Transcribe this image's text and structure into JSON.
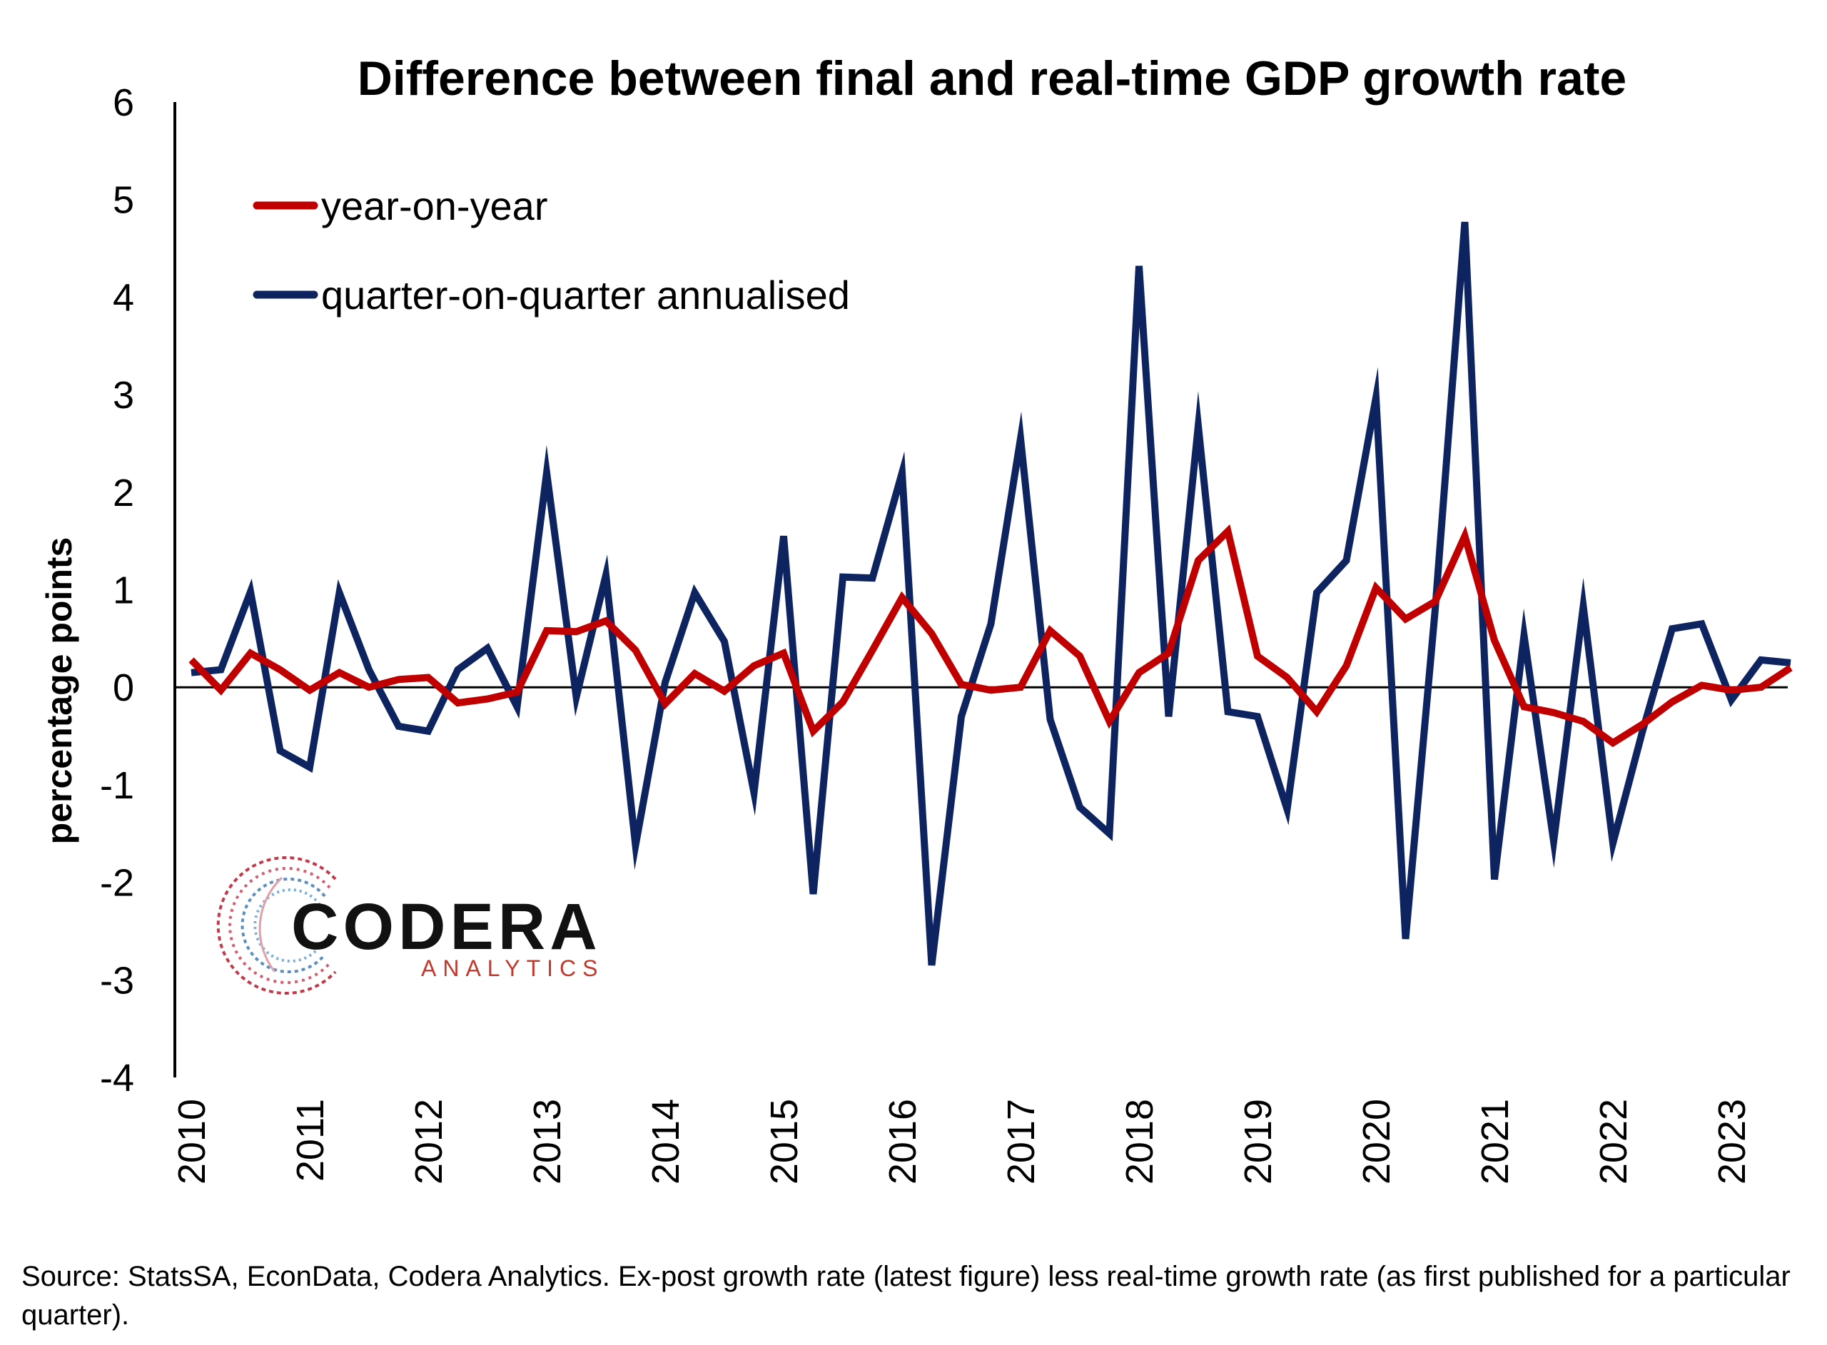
{
  "chart_data": {
    "type": "line",
    "title": "Difference between final and real-time GDP growth rate",
    "ylabel": "percentage points",
    "xlabel": "",
    "ylim": [
      -4,
      6
    ],
    "yticks": [
      6,
      5,
      4,
      3,
      2,
      1,
      0,
      -1,
      -2,
      -3,
      -4
    ],
    "ytick_labels": [
      "6",
      "5",
      "4",
      "3",
      "2",
      "1",
      "0",
      "-1",
      "-2",
      "-3",
      "-4"
    ],
    "x_start": 2010,
    "x_tick_labels": [
      "2010",
      "2011",
      "2012",
      "2013",
      "2014",
      "2015",
      "2016",
      "2017",
      "2018",
      "2019",
      "2020",
      "2021",
      "2022",
      "2023"
    ],
    "legend_position": "top-left",
    "grid": false,
    "series": [
      {
        "name": "year-on-year",
        "color": "#c00000",
        "values": [
          0.28,
          -0.03,
          0.35,
          0.18,
          -0.03,
          0.15,
          0.0,
          0.08,
          0.1,
          -0.16,
          -0.12,
          -0.05,
          0.58,
          0.57,
          0.68,
          0.38,
          -0.17,
          0.14,
          -0.04,
          0.22,
          0.35,
          -0.45,
          -0.15,
          0.38,
          0.92,
          0.55,
          0.03,
          -0.03,
          0.0,
          0.58,
          0.32,
          -0.35,
          0.15,
          0.35,
          1.3,
          1.6,
          0.32,
          0.1,
          -0.25,
          0.22,
          1.02,
          0.7,
          0.88,
          1.55,
          0.48,
          -0.2,
          -0.26,
          -0.35,
          -0.57,
          -0.38,
          -0.15,
          0.02,
          -0.03,
          0.0,
          0.2
        ]
      },
      {
        "name": "quarter-on-quarter annualised",
        "color": "#0d2461",
        "values": [
          0.15,
          0.18,
          0.98,
          -0.65,
          -0.82,
          0.97,
          0.18,
          -0.4,
          -0.45,
          0.18,
          0.4,
          -0.2,
          2.2,
          -0.1,
          1.15,
          -1.62,
          0.05,
          0.97,
          0.47,
          -1.08,
          1.55,
          -2.12,
          1.13,
          1.12,
          2.2,
          -2.85,
          -0.3,
          0.65,
          2.55,
          -0.33,
          -1.23,
          -1.5,
          4.32,
          -0.3,
          2.68,
          -0.25,
          -0.3,
          -1.25,
          0.97,
          1.3,
          2.97,
          -2.58,
          0.8,
          4.77,
          -1.97,
          0.53,
          -1.58,
          0.83,
          -1.6,
          -0.45,
          0.6,
          0.65,
          -0.13,
          0.28,
          0.25
        ]
      }
    ]
  },
  "logo": {
    "word": "CODERA",
    "sub": "ANALYTICS"
  },
  "source": "Source: StatsSA, EconData, Codera Analytics. Ex-post growth rate (latest figure) less real-time growth rate (as first published for a particular quarter)."
}
